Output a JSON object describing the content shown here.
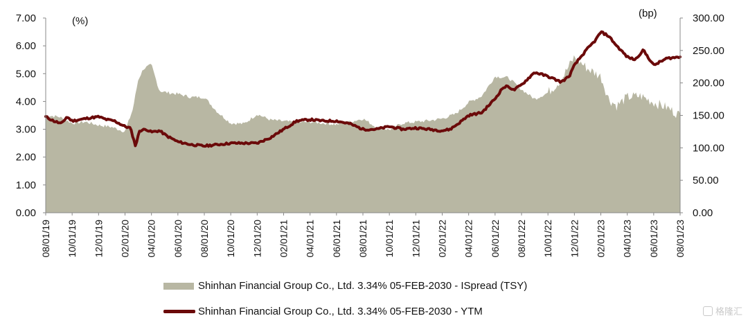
{
  "chart_data": {
    "type": "line",
    "left_unit": "(%)",
    "right_unit": "(bp)",
    "left_ticks": [
      "0.00",
      "1.00",
      "2.00",
      "3.00",
      "4.00",
      "5.00",
      "6.00",
      "7.00"
    ],
    "right_ticks": [
      "0.00",
      "50.00",
      "100.00",
      "150.00",
      "200.00",
      "250.00",
      "300.00"
    ],
    "ylim_left": [
      0,
      7
    ],
    "ylim_right": [
      0,
      300
    ],
    "x_ticks": [
      "08/01/19",
      "10/01/19",
      "12/01/19",
      "02/01/20",
      "04/01/20",
      "06/01/20",
      "08/01/20",
      "10/01/20",
      "12/01/20",
      "02/01/21",
      "04/01/21",
      "06/01/21",
      "08/01/21",
      "10/01/21",
      "12/01/21",
      "02/01/22",
      "04/01/22",
      "06/01/22",
      "08/01/22",
      "10/01/22",
      "12/01/22",
      "02/01/23",
      "04/01/23",
      "06/01/23",
      "08/01/23"
    ],
    "series": [
      {
        "name": "Shinhan Financial Group Co., Ltd. 3.34% 05-FEB-2030 - ISpread (TSY)",
        "axis": "right",
        "kind": "area",
        "color": "#b8b7a3",
        "x": [
          0,
          0.5,
          1,
          1.5,
          2,
          2.5,
          3,
          3.3,
          3.5,
          3.7,
          4,
          4.3,
          4.6,
          5,
          5.5,
          6,
          6.5,
          7,
          7.5,
          8,
          8.5,
          9,
          9.5,
          10,
          10.5,
          11,
          11.5,
          12,
          12.5,
          13,
          13.5,
          14,
          14.5,
          15,
          15.5,
          16,
          16.5,
          17,
          17.5,
          18,
          18.5,
          19,
          19.5,
          20,
          20.5,
          21,
          21.3,
          21.6,
          22,
          22.5,
          23,
          23.5,
          24
        ],
        "values": [
          150,
          148,
          138,
          140,
          135,
          132,
          125,
          160,
          205,
          222,
          228,
          188,
          185,
          183,
          178,
          178,
          155,
          138,
          137,
          152,
          143,
          141,
          139,
          140,
          138,
          136,
          140,
          145,
          132,
          128,
          138,
          140,
          142,
          145,
          152,
          170,
          180,
          210,
          208,
          190,
          175,
          185,
          205,
          240,
          222,
          210,
          175,
          165,
          178,
          180,
          170,
          162,
          150
        ]
      },
      {
        "name": "Shinhan Financial Group Co., Ltd. 3.34% 05-FEB-2030 - YTM",
        "axis": "left",
        "kind": "line",
        "color": "#6b0a0a",
        "x": [
          0,
          0.3,
          0.6,
          0.8,
          1,
          1.3,
          1.6,
          2,
          2.3,
          2.6,
          3,
          3.2,
          3.4,
          3.55,
          3.8,
          4,
          4.3,
          4.6,
          5,
          5.5,
          6,
          6.5,
          7,
          7.5,
          8,
          8.5,
          9,
          9.5,
          10,
          10.5,
          11,
          11.5,
          12,
          12.5,
          13,
          13.5,
          14,
          14.5,
          15,
          15.3,
          15.6,
          16,
          16.5,
          17,
          17.3,
          17.5,
          17.7,
          18,
          18.5,
          19,
          19.5,
          19.8,
          20,
          20.2,
          20.5,
          20.8,
          21,
          21.3,
          21.6,
          22,
          22.3,
          22.6,
          23,
          23.5,
          24
        ],
        "values": [
          3.45,
          3.3,
          3.2,
          3.45,
          3.3,
          3.35,
          3.4,
          3.45,
          3.35,
          3.3,
          3.1,
          3.05,
          2.4,
          2.95,
          3.0,
          2.9,
          2.95,
          2.75,
          2.55,
          2.45,
          2.4,
          2.45,
          2.5,
          2.5,
          2.5,
          2.7,
          3.0,
          3.3,
          3.35,
          3.3,
          3.3,
          3.2,
          3.0,
          3.0,
          3.1,
          3.0,
          3.05,
          3.0,
          2.95,
          3.0,
          3.2,
          3.5,
          3.6,
          4.1,
          4.5,
          4.55,
          4.4,
          4.6,
          5.05,
          4.9,
          4.7,
          4.9,
          5.3,
          5.55,
          5.9,
          6.2,
          6.5,
          6.35,
          6.0,
          5.6,
          5.5,
          5.85,
          5.3,
          5.55,
          5.6
        ]
      }
    ]
  },
  "watermark_text": "格隆汇"
}
